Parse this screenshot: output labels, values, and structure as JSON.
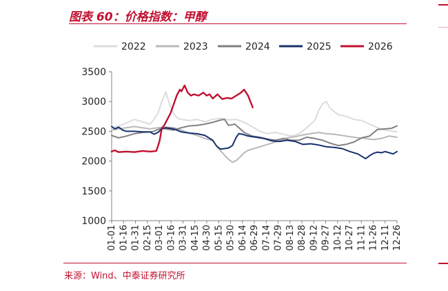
{
  "header": {
    "title": "图表 60：价格指数：甲醇"
  },
  "footer": {
    "source": "来源：Wind、中泰证券研究所"
  },
  "chart_data": {
    "type": "line",
    "title": "",
    "xlabel": "",
    "ylabel": "",
    "ylim": [
      1000,
      3500
    ],
    "yticks": [
      1000,
      1500,
      2000,
      2500,
      3000,
      3500
    ],
    "x_tick_labels": [
      "01-01",
      "01-16",
      "01-31",
      "02-15",
      "03-01",
      "03-16",
      "03-31",
      "04-15",
      "04-30",
      "05-15",
      "05-30",
      "06-14",
      "06-29",
      "07-14",
      "07-29",
      "08-13",
      "08-28",
      "09-12",
      "09-27",
      "10-12",
      "10-27",
      "11-11",
      "11-26",
      "12-11",
      "12-26"
    ],
    "x_domain_days": [
      1,
      365
    ],
    "grid": false,
    "legend_position": "top",
    "series": [
      {
        "name": "2022",
        "color": "#dcdcdc",
        "width": 2,
        "points": [
          [
            1,
            2560
          ],
          [
            10,
            2590
          ],
          [
            20,
            2640
          ],
          [
            30,
            2700
          ],
          [
            40,
            2660
          ],
          [
            50,
            2620
          ],
          [
            55,
            2700
          ],
          [
            60,
            2800
          ],
          [
            65,
            3000
          ],
          [
            70,
            3160
          ],
          [
            75,
            2950
          ],
          [
            80,
            2800
          ],
          [
            85,
            2720
          ],
          [
            90,
            2700
          ],
          [
            100,
            2680
          ],
          [
            110,
            2700
          ],
          [
            120,
            2660
          ],
          [
            130,
            2700
          ],
          [
            140,
            2720
          ],
          [
            150,
            2690
          ],
          [
            160,
            2700
          ],
          [
            170,
            2650
          ],
          [
            180,
            2580
          ],
          [
            190,
            2500
          ],
          [
            200,
            2460
          ],
          [
            210,
            2480
          ],
          [
            220,
            2450
          ],
          [
            230,
            2420
          ],
          [
            240,
            2460
          ],
          [
            250,
            2560
          ],
          [
            260,
            2680
          ],
          [
            265,
            2850
          ],
          [
            270,
            2960
          ],
          [
            275,
            3000
          ],
          [
            280,
            2880
          ],
          [
            290,
            2780
          ],
          [
            300,
            2750
          ],
          [
            310,
            2700
          ],
          [
            320,
            2680
          ],
          [
            330,
            2620
          ],
          [
            340,
            2560
          ],
          [
            350,
            2520
          ],
          [
            365,
            2490
          ]
        ]
      },
      {
        "name": "2023",
        "color": "#b8b8b8",
        "width": 2,
        "points": [
          [
            1,
            2520
          ],
          [
            10,
            2540
          ],
          [
            20,
            2560
          ],
          [
            30,
            2580
          ],
          [
            40,
            2560
          ],
          [
            50,
            2540
          ],
          [
            60,
            2560
          ],
          [
            70,
            2570
          ],
          [
            80,
            2560
          ],
          [
            90,
            2520
          ],
          [
            100,
            2470
          ],
          [
            110,
            2430
          ],
          [
            120,
            2380
          ],
          [
            130,
            2340
          ],
          [
            138,
            2200
          ],
          [
            145,
            2100
          ],
          [
            150,
            2030
          ],
          [
            155,
            1980
          ],
          [
            160,
            2010
          ],
          [
            165,
            2070
          ],
          [
            170,
            2140
          ],
          [
            175,
            2180
          ],
          [
            185,
            2220
          ],
          [
            195,
            2260
          ],
          [
            205,
            2300
          ],
          [
            215,
            2340
          ],
          [
            225,
            2390
          ],
          [
            235,
            2410
          ],
          [
            245,
            2440
          ],
          [
            255,
            2460
          ],
          [
            265,
            2480
          ],
          [
            275,
            2460
          ],
          [
            285,
            2450
          ],
          [
            295,
            2430
          ],
          [
            305,
            2410
          ],
          [
            315,
            2390
          ],
          [
            325,
            2380
          ],
          [
            335,
            2360
          ],
          [
            345,
            2380
          ],
          [
            355,
            2420
          ],
          [
            365,
            2400
          ]
        ]
      },
      {
        "name": "2024",
        "color": "#808080",
        "width": 2,
        "points": [
          [
            1,
            2430
          ],
          [
            10,
            2390
          ],
          [
            20,
            2420
          ],
          [
            30,
            2460
          ],
          [
            40,
            2480
          ],
          [
            50,
            2490
          ],
          [
            55,
            2500
          ],
          [
            60,
            2530
          ],
          [
            65,
            2550
          ],
          [
            70,
            2540
          ],
          [
            80,
            2520
          ],
          [
            90,
            2560
          ],
          [
            100,
            2590
          ],
          [
            110,
            2600
          ],
          [
            120,
            2620
          ],
          [
            130,
            2650
          ],
          [
            140,
            2690
          ],
          [
            145,
            2700
          ],
          [
            150,
            2600
          ],
          [
            158,
            2620
          ],
          [
            165,
            2540
          ],
          [
            170,
            2480
          ],
          [
            180,
            2420
          ],
          [
            190,
            2400
          ],
          [
            200,
            2370
          ],
          [
            210,
            2350
          ],
          [
            220,
            2380
          ],
          [
            230,
            2350
          ],
          [
            240,
            2350
          ],
          [
            250,
            2400
          ],
          [
            260,
            2380
          ],
          [
            270,
            2350
          ],
          [
            280,
            2300
          ],
          [
            290,
            2260
          ],
          [
            300,
            2280
          ],
          [
            310,
            2320
          ],
          [
            320,
            2390
          ],
          [
            330,
            2420
          ],
          [
            340,
            2530
          ],
          [
            350,
            2540
          ],
          [
            358,
            2550
          ],
          [
            365,
            2590
          ]
        ]
      },
      {
        "name": "2025",
        "color": "#15306e",
        "width": 2,
        "points": [
          [
            1,
            2580
          ],
          [
            5,
            2540
          ],
          [
            10,
            2570
          ],
          [
            15,
            2520
          ],
          [
            20,
            2500
          ],
          [
            30,
            2500
          ],
          [
            40,
            2490
          ],
          [
            50,
            2490
          ],
          [
            55,
            2450
          ],
          [
            60,
            2480
          ],
          [
            65,
            2540
          ],
          [
            70,
            2560
          ],
          [
            80,
            2540
          ],
          [
            90,
            2490
          ],
          [
            100,
            2470
          ],
          [
            110,
            2460
          ],
          [
            120,
            2430
          ],
          [
            130,
            2350
          ],
          [
            135,
            2250
          ],
          [
            140,
            2200
          ],
          [
            145,
            2210
          ],
          [
            150,
            2220
          ],
          [
            155,
            2260
          ],
          [
            160,
            2400
          ],
          [
            163,
            2460
          ],
          [
            168,
            2450
          ],
          [
            175,
            2420
          ],
          [
            185,
            2400
          ],
          [
            195,
            2380
          ],
          [
            205,
            2340
          ],
          [
            215,
            2330
          ],
          [
            225,
            2350
          ],
          [
            235,
            2330
          ],
          [
            245,
            2280
          ],
          [
            255,
            2290
          ],
          [
            265,
            2270
          ],
          [
            275,
            2240
          ],
          [
            285,
            2230
          ],
          [
            295,
            2210
          ],
          [
            305,
            2160
          ],
          [
            315,
            2120
          ],
          [
            320,
            2080
          ],
          [
            325,
            2040
          ],
          [
            330,
            2090
          ],
          [
            335,
            2130
          ],
          [
            340,
            2150
          ],
          [
            345,
            2140
          ],
          [
            350,
            2160
          ],
          [
            355,
            2140
          ],
          [
            360,
            2120
          ],
          [
            365,
            2160
          ]
        ]
      },
      {
        "name": "2026",
        "color": "#c0102f",
        "width": 2.4,
        "points": [
          [
            1,
            2160
          ],
          [
            5,
            2180
          ],
          [
            10,
            2150
          ],
          [
            20,
            2160
          ],
          [
            30,
            2150
          ],
          [
            40,
            2170
          ],
          [
            50,
            2160
          ],
          [
            58,
            2170
          ],
          [
            62,
            2330
          ],
          [
            65,
            2550
          ],
          [
            68,
            2600
          ],
          [
            72,
            2700
          ],
          [
            76,
            2800
          ],
          [
            80,
            2950
          ],
          [
            84,
            3100
          ],
          [
            88,
            3200
          ],
          [
            90,
            3170
          ],
          [
            94,
            3270
          ],
          [
            98,
            3150
          ],
          [
            102,
            3100
          ],
          [
            106,
            3120
          ],
          [
            112,
            3100
          ],
          [
            118,
            3150
          ],
          [
            122,
            3100
          ],
          [
            126,
            3120
          ],
          [
            130,
            3050
          ],
          [
            136,
            3120
          ],
          [
            142,
            3040
          ],
          [
            148,
            3060
          ],
          [
            154,
            3050
          ],
          [
            160,
            3100
          ],
          [
            166,
            3150
          ],
          [
            170,
            3200
          ],
          [
            175,
            3100
          ],
          [
            178,
            3000
          ],
          [
            181,
            2900
          ]
        ]
      }
    ]
  }
}
